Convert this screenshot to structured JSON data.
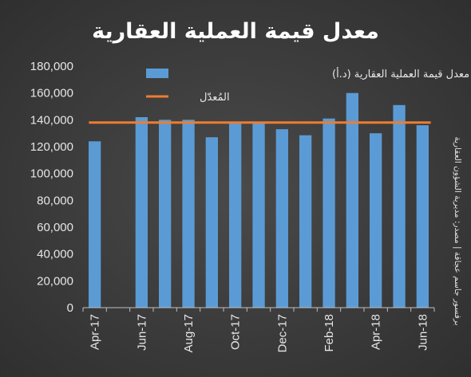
{
  "chart_data": {
    "type": "bar",
    "title": "معدل قيمة العملية العقارية",
    "categories": [
      "Apr-17",
      "May-17",
      "Jun-17",
      "Jul-17",
      "Aug-17",
      "Sep-17",
      "Oct-17",
      "Nov-17",
      "Dec-17",
      "Jan-18",
      "Feb-18",
      "Mar-18",
      "Apr-18",
      "May-18",
      "Jun-18"
    ],
    "tick_labels": [
      "Apr-17",
      "Jun-17",
      "Aug-17",
      "Oct-17",
      "Dec-17",
      "Feb-18",
      "Apr-18",
      "Jun-18"
    ],
    "series": [
      {
        "name": "معدل قيمة العملية العقارية (د.أ)",
        "type": "bar",
        "color": "#5b9bd5",
        "values": [
          124000,
          null,
          142000,
          140000,
          140000,
          127000,
          138000,
          138000,
          133000,
          128500,
          141000,
          160000,
          130000,
          151000,
          136000
        ]
      },
      {
        "name": "المُعدّل",
        "type": "line",
        "color": "#ed7d31",
        "value": 138000
      }
    ],
    "ylim": [
      0,
      180000
    ],
    "yticks": [
      0,
      20000,
      40000,
      60000,
      80000,
      100000,
      120000,
      140000,
      160000,
      180000
    ],
    "ytick_labels": [
      "0",
      "20,000",
      "40,000",
      "60,000",
      "80,000",
      "100,000",
      "120,000",
      "140,000",
      "160,000",
      "180,000"
    ],
    "grid": false,
    "legend": "top-center",
    "source_note": "برفسور جاسم عجاقة | مصدر: مديرية الشؤون العقارية"
  }
}
